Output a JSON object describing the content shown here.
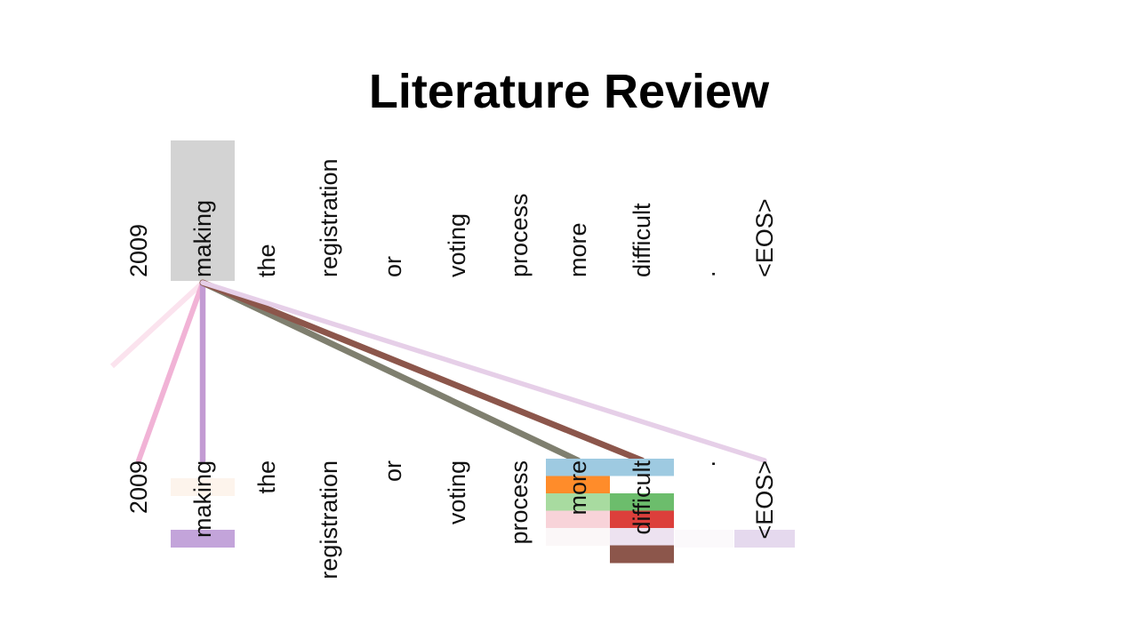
{
  "slide": {
    "title": "Literature Review"
  },
  "diagram": {
    "source_tokens": [
      "2009",
      "making",
      "the",
      "registration",
      "or",
      "voting",
      "process",
      "more",
      "difficult",
      ".",
      "<EOS>"
    ],
    "target_tokens": [
      "2009",
      "making",
      "the",
      "registration",
      "or",
      "voting",
      "process",
      "more",
      "difficult",
      ".",
      "<EOS>"
    ],
    "highlighted_source_index": 1,
    "highlight_color": "#d3d3d3",
    "attention_links": [
      {
        "to": 0,
        "color": "#f1b3d6",
        "weight": 0.6
      },
      {
        "to": 1,
        "color": "#c39bd3",
        "weight": 0.7
      },
      {
        "to": 7,
        "color": "#7f7f6f",
        "weight": 0.8
      },
      {
        "to": 8,
        "color": "#8c564b",
        "weight": 0.8
      },
      {
        "to": 10,
        "color": "#e6cfe8",
        "weight": 0.5
      }
    ],
    "cell_colors": {
      "more": [
        "#9ecae1",
        "#ff8c2a",
        "#a8dba0",
        "#f8d3d9",
        "#fbf7f8"
      ],
      "difficult": [
        "#9ecae1",
        "#ffffff",
        "#6cbd6c",
        "#dc3f3b",
        "#ede2f0",
        "#8c564b"
      ],
      "making": [
        "#fdf4ec",
        "#c3a4da"
      ],
      "eos": [
        "#e5d9ee"
      ]
    }
  }
}
